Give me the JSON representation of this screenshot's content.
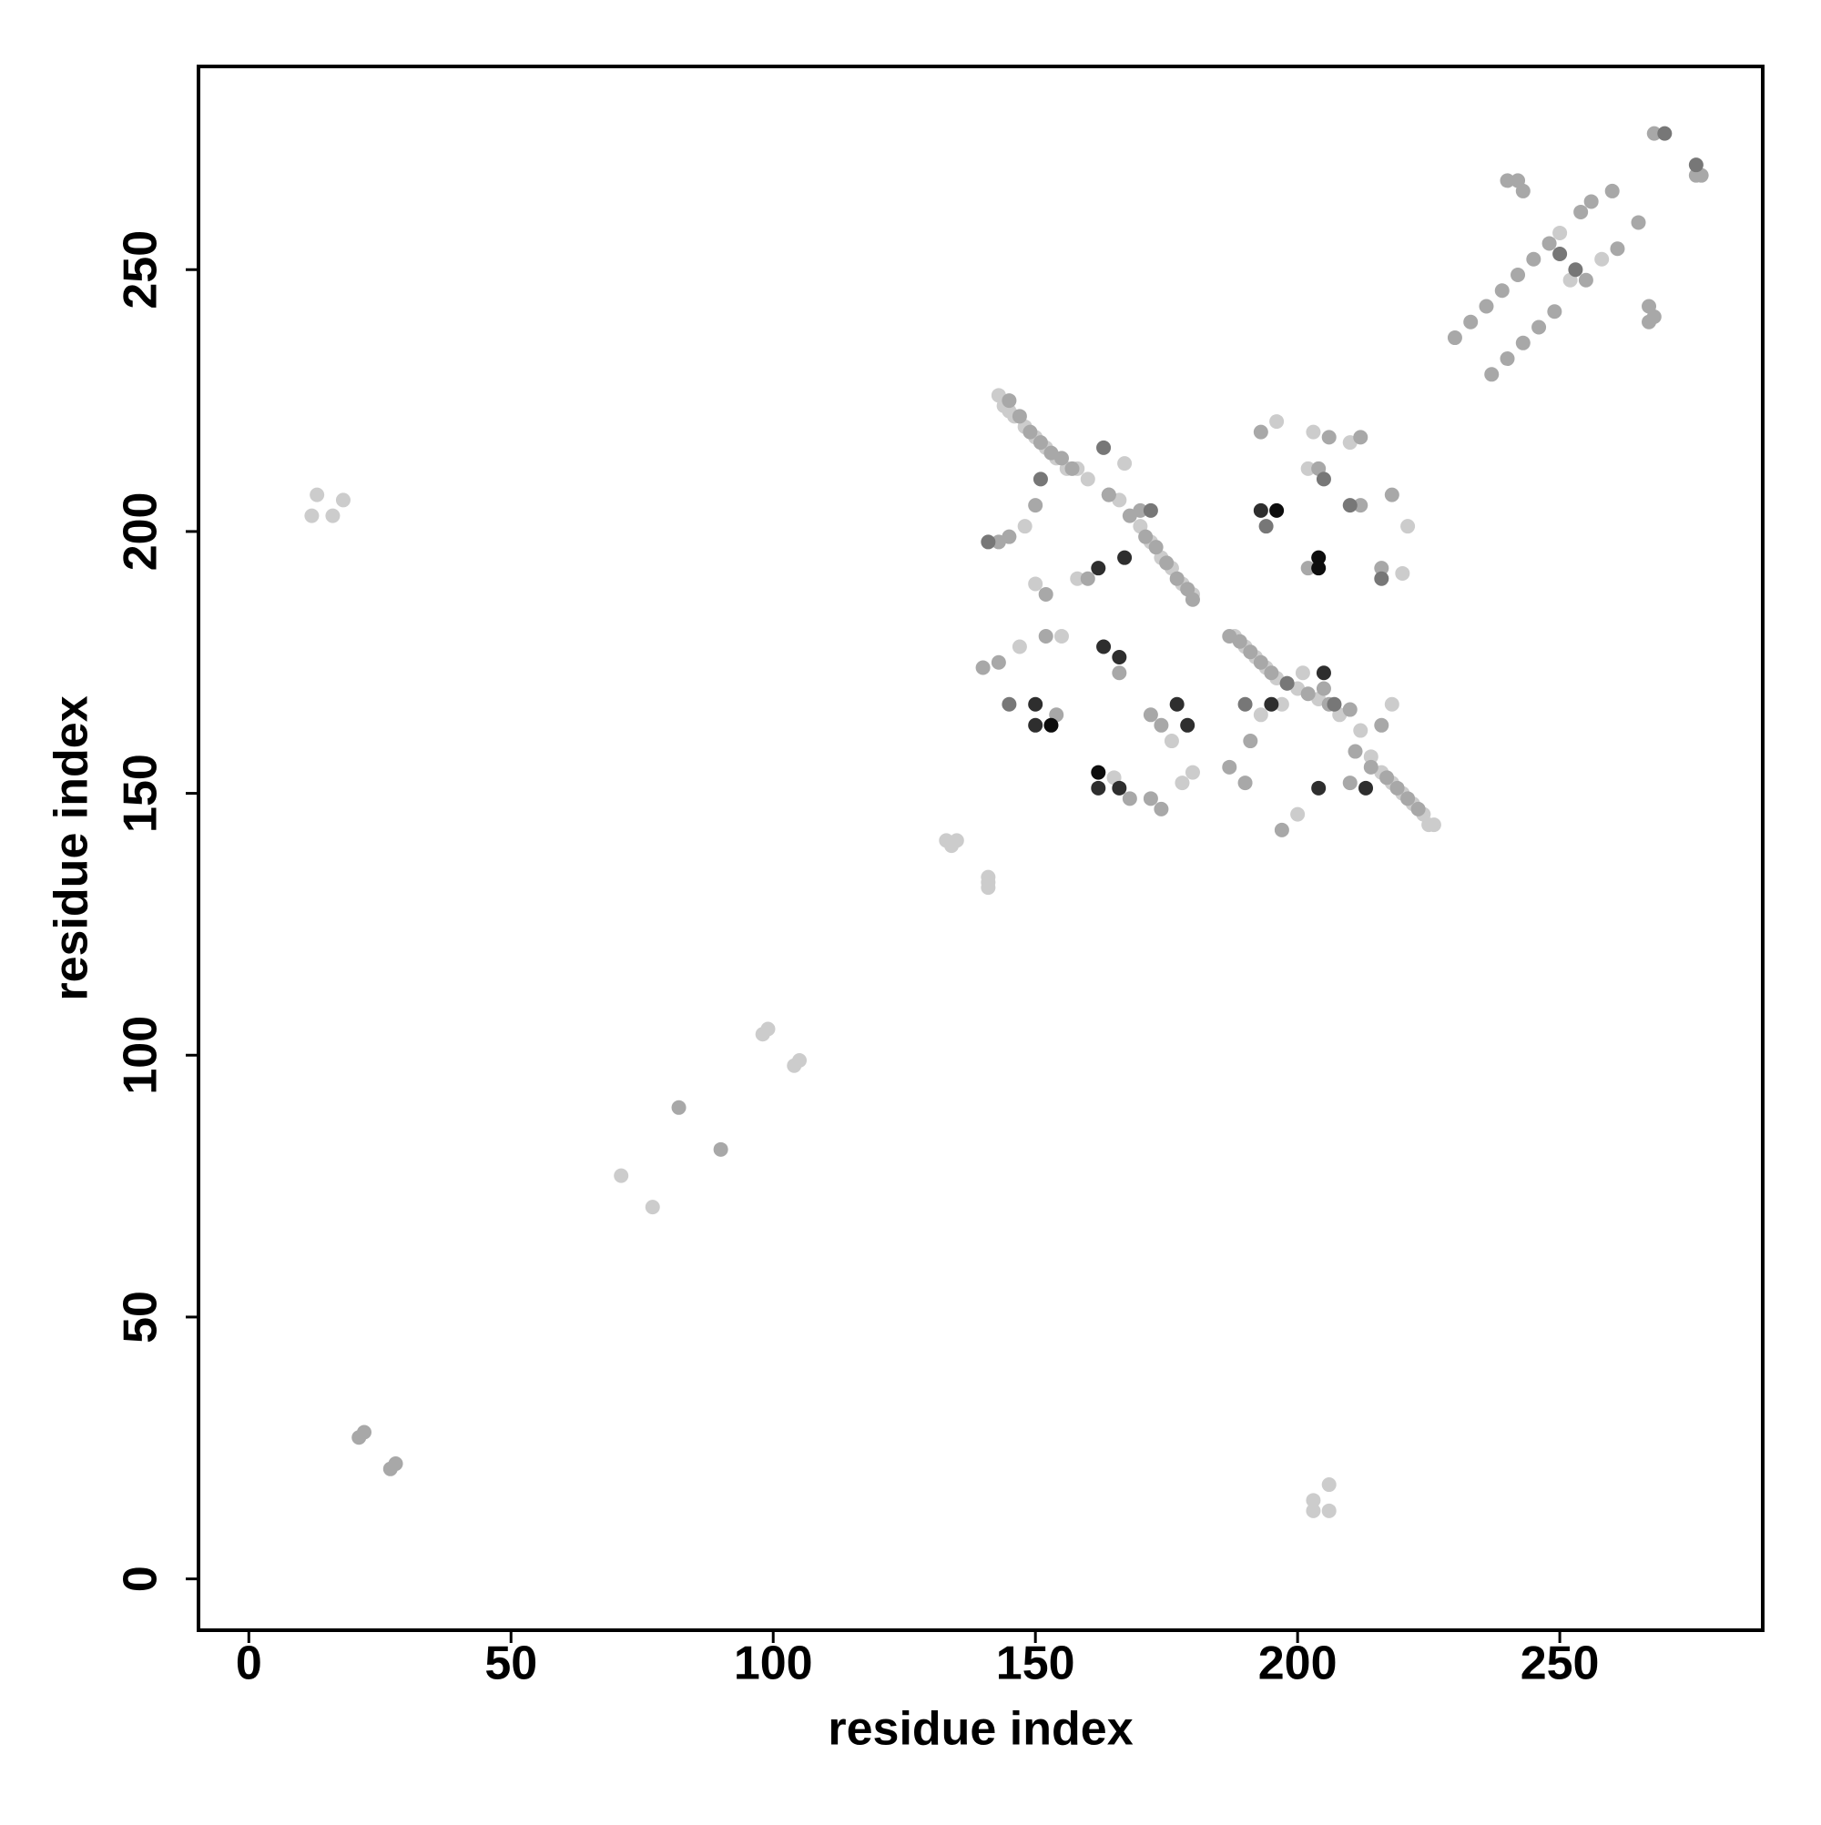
{
  "chart_data": {
    "type": "scatter",
    "xlabel": "residue index",
    "ylabel": "residue index",
    "xlim": [
      -9.6,
      288.7
    ],
    "ylim": [
      -9.8,
      288.8
    ],
    "xticks": [
      0,
      50,
      100,
      150,
      200,
      250
    ],
    "yticks": [
      0,
      50,
      100,
      150,
      200,
      250
    ],
    "series": [
      {
        "color": "#cccccc",
        "x": [
          12,
          13,
          16,
          18,
          203,
          203,
          206,
          206,
          71,
          77,
          98,
          99,
          104,
          105,
          133,
          134,
          135,
          141,
          141,
          141,
          143,
          144,
          145,
          146,
          148,
          150,
          152,
          154,
          158,
          160,
          166,
          170,
          172,
          174,
          176,
          178,
          180,
          188,
          190,
          192,
          194,
          196,
          200,
          204,
          208,
          212,
          214,
          216,
          218,
          220,
          222,
          224,
          225,
          226,
          148,
          150,
          158,
          167,
          156,
          147,
          155,
          165,
          178,
          180,
          176,
          196,
          203,
          210,
          202,
          221,
          220,
          193,
          197,
          200,
          218,
          201,
          250,
          252,
          258
        ],
        "values": [
          203,
          207,
          203,
          206,
          13,
          15,
          18,
          13,
          77,
          71,
          104,
          105,
          98,
          99,
          141,
          140,
          141,
          133,
          134,
          132,
          226,
          224,
          223,
          222,
          220,
          218,
          216,
          214,
          212,
          210,
          206,
          201,
          198,
          195,
          193,
          190,
          188,
          180,
          178,
          176,
          174,
          172,
          170,
          168,
          165,
          162,
          157,
          154,
          152,
          150,
          148,
          146,
          144,
          144,
          201,
          190,
          191,
          213,
          212,
          178,
          180,
          153,
          152,
          154,
          160,
          221,
          219,
          217,
          212,
          201,
          192,
          165,
          167,
          146,
          167,
          173,
          257,
          248,
          252
        ]
      },
      {
        "color": "#a8a8a8",
        "x": [
          21,
          22,
          27,
          28,
          82,
          90,
          145,
          147,
          149,
          151,
          153,
          155,
          157,
          164,
          168,
          171,
          173,
          175,
          177,
          179,
          180,
          187,
          189,
          191,
          193,
          195,
          198,
          202,
          206,
          214,
          217,
          219,
          221,
          223,
          150,
          145,
          143,
          152,
          160,
          164,
          170,
          140,
          143,
          152,
          166,
          154,
          168,
          172,
          174,
          174,
          172,
          193,
          206,
          212,
          204,
          212,
          218,
          216,
          202,
          187,
          190,
          191,
          197,
          210,
          211,
          216,
          205,
          210,
          230,
          233,
          236,
          239,
          242,
          245,
          248,
          254,
          256,
          260,
          237,
          240,
          243,
          246,
          249,
          255,
          261,
          265,
          240,
          242,
          243,
          267,
          268,
          267,
          268,
          276,
          277
        ],
        "values": [
          27,
          28,
          21,
          22,
          90,
          82,
          225,
          222,
          219,
          217,
          215,
          214,
          212,
          207,
          203,
          199,
          197,
          194,
          191,
          189,
          187,
          180,
          179,
          177,
          175,
          173,
          171,
          169,
          167,
          155,
          153,
          151,
          149,
          147,
          205,
          199,
          198,
          188,
          191,
          207,
          204,
          174,
          175,
          180,
          173,
          165,
          149,
          149,
          147,
          163,
          165,
          219,
          218,
          218,
          212,
          205,
          207,
          193,
          193,
          155,
          152,
          160,
          143,
          152,
          158,
          163,
          170,
          166,
          237,
          240,
          243,
          246,
          249,
          252,
          255,
          261,
          263,
          265,
          230,
          233,
          236,
          239,
          242,
          248,
          254,
          259,
          267,
          267,
          265,
          240,
          241,
          243,
          276,
          268,
          268
        ]
      },
      {
        "color": "#777777",
        "x": [
          141,
          151,
          145,
          163,
          172,
          194,
          205,
          210,
          216,
          198,
          207,
          190,
          270,
          276,
          253,
          250
        ],
        "values": [
          198,
          210,
          167,
          216,
          204,
          201,
          210,
          205,
          191,
          171,
          167,
          167,
          276,
          270,
          250,
          253
        ]
      },
      {
        "color": "#2e2e2e",
        "x": [
          162,
          167,
          163,
          166,
          150,
          150,
          162,
          166,
          177,
          179,
          195,
          204,
          213,
          205,
          193
        ],
        "values": [
          193,
          195,
          178,
          176,
          167,
          163,
          151,
          151,
          167,
          163,
          167,
          151,
          151,
          173,
          204
        ]
      },
      {
        "color": "#0d0d0d",
        "x": [
          153,
          162,
          196,
          204,
          204
        ],
        "values": [
          163,
          154,
          204,
          195,
          193
        ]
      }
    ]
  }
}
